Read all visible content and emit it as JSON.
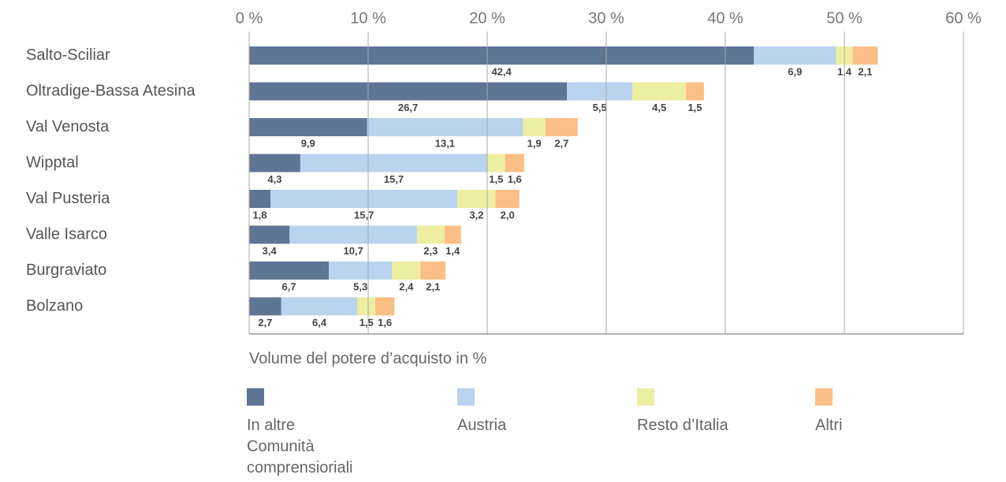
{
  "chart_data": {
    "type": "stacked-bar-horizontal",
    "categories": [
      "Salto-Sciliar",
      "Oltradige-Bassa Atesina",
      "Val Venosta",
      "Wipptal",
      "Val Pusteria",
      "Valle Isarco",
      "Burgraviato",
      "Bolzano"
    ],
    "series": [
      {
        "name": "In altre Comunità comprensioriali",
        "color": "#5f7594",
        "values": [
          42.4,
          26.7,
          9.9,
          4.3,
          1.8,
          3.4,
          6.7,
          2.7
        ],
        "value_labels": [
          "42,4",
          "26,7",
          "9,9",
          "4,3",
          "1,8",
          "3,4",
          "6,7",
          "2,7"
        ]
      },
      {
        "name": "Austria",
        "color": "#bad3ee",
        "values": [
          6.9,
          5.5,
          13.1,
          15.7,
          15.7,
          10.7,
          5.3,
          6.4
        ],
        "value_labels": [
          "6,9",
          "5,5",
          "13,1",
          "15,7",
          "15,7",
          "10,7",
          "5,3",
          "6,4"
        ]
      },
      {
        "name": "Resto d’Italia",
        "color": "#eeeea0",
        "values": [
          1.4,
          4.5,
          1.9,
          1.5,
          3.2,
          2.3,
          2.4,
          1.5
        ],
        "value_labels": [
          "1,4",
          "4,5",
          "1,9",
          "1,5",
          "3,2",
          "2,3",
          "2,4",
          "1,5"
        ]
      },
      {
        "name": "Altri",
        "color": "#fbbf85",
        "values": [
          2.1,
          1.5,
          2.7,
          1.6,
          2.0,
          1.4,
          2.1,
          1.6
        ],
        "value_labels": [
          "2,1",
          "1,5",
          "2,7",
          "1,6",
          "2,0",
          "1,4",
          "2,1",
          "1,6"
        ]
      }
    ],
    "x_axis_label": "Volume del potere d’acquisto in %",
    "xlim": [
      0,
      60
    ],
    "xticks": [
      {
        "value": 0,
        "label": "0 %"
      },
      {
        "value": 10,
        "label": "10 %"
      },
      {
        "value": 20,
        "label": "20 %"
      },
      {
        "value": 30,
        "label": "30 %"
      },
      {
        "value": 40,
        "label": "40 %"
      },
      {
        "value": 50,
        "label": "50 %"
      },
      {
        "value": 60,
        "label": "60 %"
      }
    ],
    "grid": true,
    "legend": "bottom"
  }
}
